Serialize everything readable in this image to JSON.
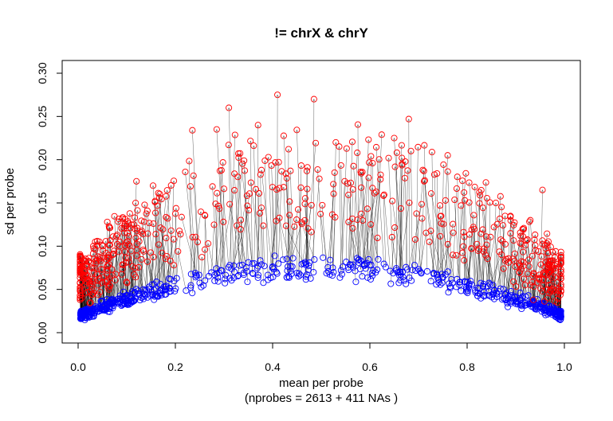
{
  "chart_data": {
    "type": "scatter",
    "title": "!= chrX & chrY",
    "xlabel": "mean per probe",
    "xlabel_line2": "(nprobes = 2613 + 411 NAs )",
    "ylabel": "sd per probe",
    "xlim": [
      0.0,
      1.0
    ],
    "ylim": [
      0.0,
      0.3
    ],
    "x_ticks": [
      "0.0",
      "0.2",
      "0.4",
      "0.6",
      "0.8",
      "1.0"
    ],
    "y_ticks": [
      "0.00",
      "0.05",
      "0.10",
      "0.15",
      "0.20",
      "0.25",
      "0.30"
    ],
    "grid": false,
    "legend": "none",
    "colors": {
      "start": "#0000ff",
      "end": "#ff0000",
      "arrow": "#000000"
    },
    "series_description_note": "",
    "notable_red_points": [
      {
        "x": 0.41,
        "y": 0.275
      },
      {
        "x": 0.485,
        "y": 0.27
      },
      {
        "x": 0.31,
        "y": 0.26
      },
      {
        "x": 0.68,
        "y": 0.247
      },
      {
        "x": 0.235,
        "y": 0.234
      },
      {
        "x": 0.285,
        "y": 0.235
      },
      {
        "x": 0.37,
        "y": 0.24
      },
      {
        "x": 0.53,
        "y": 0.22
      },
      {
        "x": 0.65,
        "y": 0.225
      },
      {
        "x": 0.76,
        "y": 0.205
      },
      {
        "x": 0.06,
        "y": 0.128
      },
      {
        "x": 0.12,
        "y": 0.175
      },
      {
        "x": 0.955,
        "y": 0.165
      },
      {
        "x": 0.93,
        "y": 0.13
      }
    ]
  }
}
